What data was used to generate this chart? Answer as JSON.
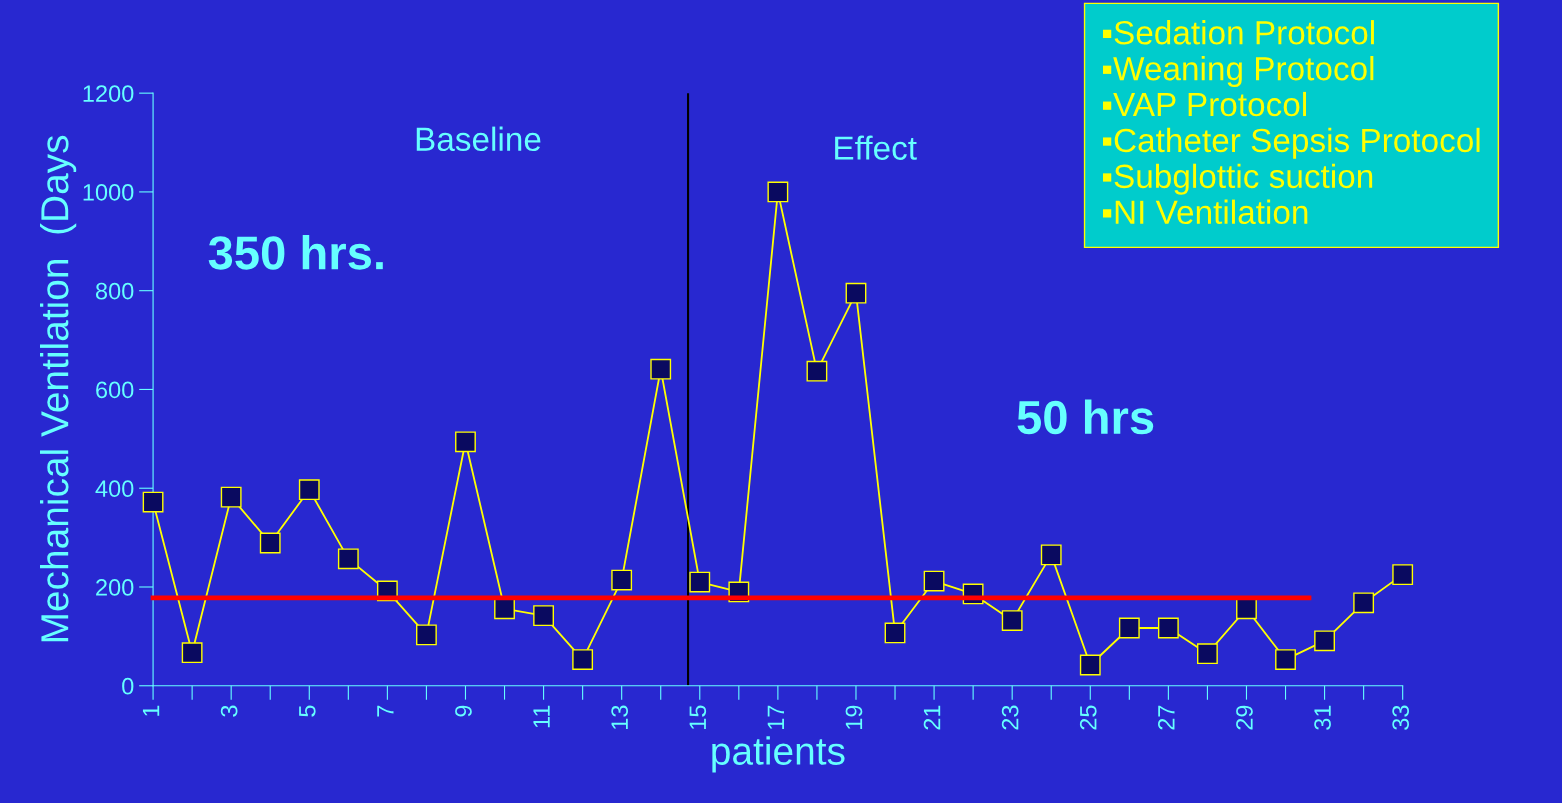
{
  "chart_data": {
    "type": "line",
    "xlabel": "patients",
    "ylabel": "Mechanical Ventilation  (Days",
    "x": [
      1,
      2,
      3,
      4,
      5,
      6,
      7,
      8,
      9,
      10,
      11,
      12,
      13,
      14,
      15,
      16,
      17,
      18,
      19,
      20,
      21,
      22,
      23,
      24,
      25,
      26,
      27,
      28,
      29,
      30,
      31,
      32,
      33
    ],
    "series": [
      {
        "color": "#ffff00",
        "marker": "square",
        "values": [
          372,
          67,
          382,
          289,
          397,
          257,
          192,
          103,
          494,
          156,
          142,
          53,
          214,
          641,
          210,
          190,
          1000,
          637,
          795,
          107,
          212,
          186,
          132,
          265,
          42,
          117,
          117,
          65,
          156,
          53,
          91,
          168,
          225
        ]
      },
      {
        "type": "line",
        "color": "#ff0000",
        "marker": "none",
        "x": [
          1,
          30.6
        ],
        "values": [
          178,
          178
        ]
      }
    ],
    "ref_lines": [
      {
        "axis": "x",
        "value": 14.7,
        "color": "#000000"
      }
    ],
    "annotations": [
      "Baseline",
      "Effect",
      "350 hrs.",
      "50 hrs",
      "▪Sedation Protocol\n▪Weaning Protocol\n▪VAP Protocol\n▪Catheter Sepsis Protocol\n▪Subglottic suction\n▪NI Ventilation"
    ],
    "xlim": [
      1,
      33
    ],
    "ylim": [
      0,
      1200
    ],
    "xticks": [
      1,
      {
        "value": 2,
        "label": null
      },
      3,
      {
        "value": 4,
        "label": null
      },
      5,
      {
        "value": 6,
        "label": null
      },
      7,
      {
        "value": 8,
        "label": null
      },
      9,
      {
        "value": 10,
        "label": null
      },
      11,
      {
        "value": 12,
        "label": null
      },
      13,
      {
        "value": 14,
        "label": null
      },
      15,
      {
        "value": 16,
        "label": null
      },
      17,
      {
        "value": 18,
        "label": null
      },
      19,
      {
        "value": 20,
        "label": null
      },
      21,
      {
        "value": 22,
        "label": null
      },
      23,
      {
        "value": 24,
        "label": null
      },
      25,
      {
        "value": 26,
        "label": null
      },
      27,
      {
        "value": 28,
        "label": null
      },
      29,
      {
        "value": 30,
        "label": null
      },
      31,
      {
        "value": 32,
        "label": null
      },
      33
    ],
    "yticks": [
      0,
      200,
      400,
      600,
      800,
      1000,
      1200
    ],
    "grid": false
  }
}
